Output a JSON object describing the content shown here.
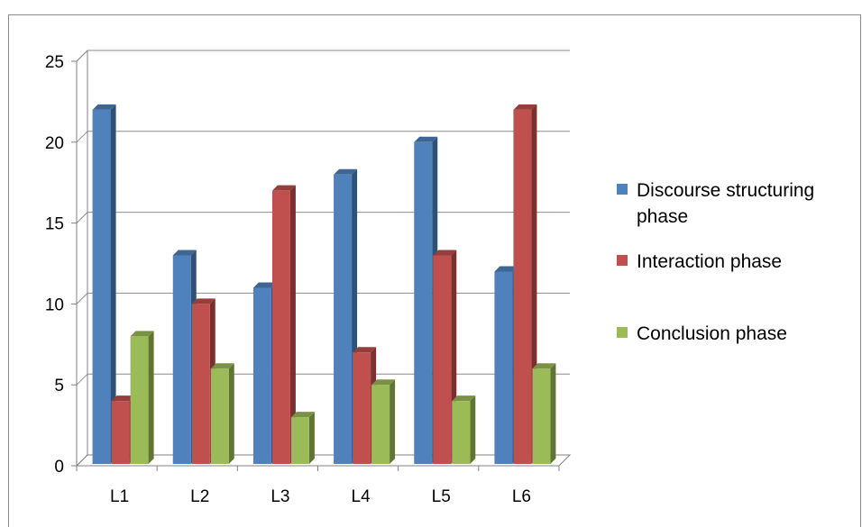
{
  "chart_data": {
    "type": "bar",
    "categories": [
      "L1",
      "L2",
      "L3",
      "L4",
      "L5",
      "L6"
    ],
    "series": [
      {
        "name": "Discourse structuring phase",
        "legend_lines": [
          "Discourse structuring",
          "phase"
        ],
        "color": "#4f81bd",
        "values": [
          22,
          13,
          11,
          18,
          20,
          12
        ]
      },
      {
        "name": "Interaction phase",
        "legend_lines": [
          "Interaction phase"
        ],
        "color": "#c0504d",
        "values": [
          4,
          10,
          17,
          7,
          13,
          22
        ]
      },
      {
        "name": "Conclusion phase",
        "legend_lines": [
          "Conclusion phase"
        ],
        "color": "#9bbb59",
        "values": [
          8,
          6,
          3,
          5,
          4,
          6
        ]
      }
    ],
    "ylim": [
      0,
      25
    ],
    "yticks": [
      0,
      5,
      10,
      15,
      20,
      25
    ],
    "grid": true,
    "legend": "right",
    "style": "3d-clustered-column"
  }
}
